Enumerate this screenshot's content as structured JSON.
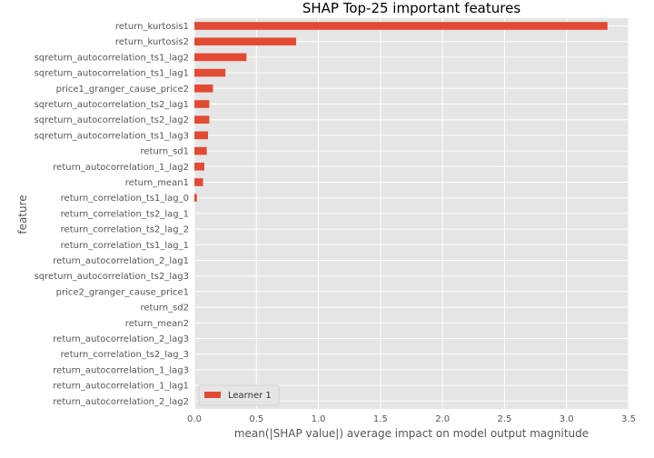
{
  "chart_data": {
    "type": "bar",
    "orientation": "horizontal",
    "title": "SHAP Top-25 important features",
    "xlabel": "mean(|SHAP value|) average impact on model output magnitude",
    "ylabel": "feature",
    "xlim": [
      0,
      3.5
    ],
    "xticks": [
      0.0,
      0.5,
      1.0,
      1.5,
      2.0,
      2.5,
      3.0,
      3.5
    ],
    "xtick_labels": [
      "0.0",
      "0.5",
      "1.0",
      "1.5",
      "2.0",
      "2.5",
      "3.0",
      "3.5"
    ],
    "grid": true,
    "legend_position": "lower-left",
    "colors": {
      "bar": "#e24a33",
      "plot_background": "#e5e5e5",
      "grid": "#ffffff"
    },
    "categories": [
      "return_kurtosis1",
      "return_kurtosis2",
      "sqreturn_autocorrelation_ts1_lag2",
      "sqreturn_autocorrelation_ts1_lag1",
      "price1_granger_cause_price2",
      "sqreturn_autocorrelation_ts2_lag1",
      "sqreturn_autocorrelation_ts2_lag2",
      "sqreturn_autocorrelation_ts1_lag3",
      "return_sd1",
      "return_autocorrelation_1_lag2",
      "return_mean1",
      "return_correlation_ts1_lag_0",
      "return_correlation_ts2_lag_1",
      "return_correlation_ts2_lag_2",
      "return_correlation_ts1_lag_1",
      "return_autocorrelation_2_lag1",
      "sqreturn_autocorrelation_ts2_lag3",
      "price2_granger_cause_price1",
      "return_sd2",
      "return_mean2",
      "return_autocorrelation_2_lag3",
      "return_correlation_ts2_lag_3",
      "return_autocorrelation_1_lag3",
      "return_autocorrelation_1_lag1",
      "return_autocorrelation_2_lag2"
    ],
    "series": [
      {
        "name": "Learner 1",
        "values": [
          3.33,
          0.82,
          0.42,
          0.25,
          0.15,
          0.12,
          0.12,
          0.11,
          0.1,
          0.08,
          0.07,
          0.02,
          0.0,
          0.0,
          0.0,
          0.0,
          0.0,
          0.0,
          0.0,
          0.0,
          0.0,
          0.0,
          0.0,
          0.0,
          0.0
        ]
      }
    ]
  }
}
